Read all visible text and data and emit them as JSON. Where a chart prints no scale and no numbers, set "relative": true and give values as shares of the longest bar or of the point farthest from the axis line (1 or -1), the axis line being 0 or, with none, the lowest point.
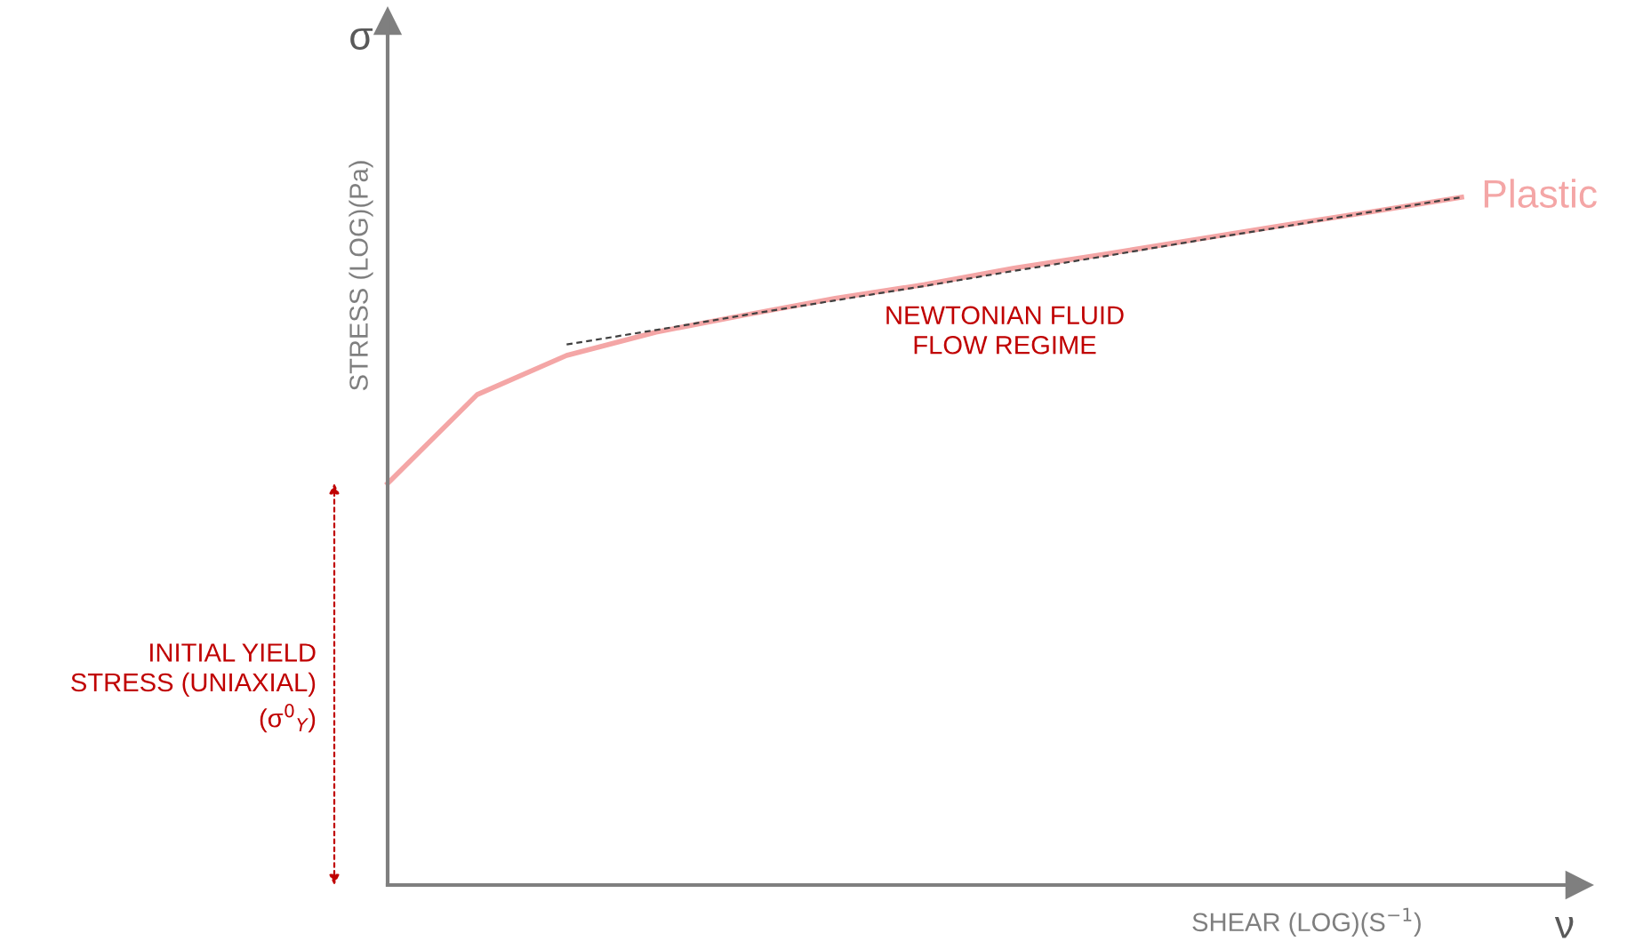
{
  "chart_data": {
    "type": "line",
    "relative": true,
    "xlabel": "SHEAR (LOG)(S$^{−1}$)",
    "ylabel": "STRESS (LOG)(Pa)",
    "categories": [
      null,
      null,
      null,
      null,
      null,
      null,
      null,
      null,
      null,
      null,
      null,
      null,
      null
    ],
    "series": [
      {
        "name": "Plastic",
        "color": "#f4a6a6",
        "values": [
          0.584,
          0.713,
          0.77,
          0.804,
          0.829,
          0.853,
          0.873,
          0.897,
          0.917,
          0.938,
          0.959,
          0.979,
          1.0
        ]
      },
      {
        "color": "#404040",
        "line_style": "dashed",
        "values": [
          null,
          null,
          0.786,
          0.807,
          0.829,
          0.85,
          0.871,
          0.893,
          0.914,
          0.936,
          0.957,
          0.979,
          1.0
        ]
      }
    ],
    "annotations": [
      "NEWTONIAN FLUID\nFLOW REGIME",
      "INITIAL YIELD\nSTRESS (UNIAXIAL)\n(σ$^{0}$$_{Y}$)",
      "σ",
      "ν"
    ],
    "grid": false,
    "legend": false
  }
}
